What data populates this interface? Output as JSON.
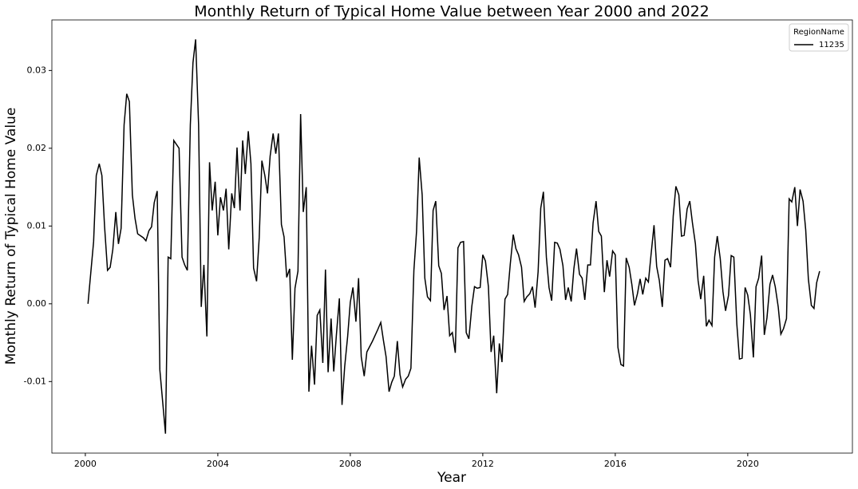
{
  "chart_data": {
    "type": "line",
    "title": "Monthly Return of Typical Home Value between Year 2000 and 2022",
    "x_label": "Year",
    "y_label": "Monthly Return of Typical Home Value",
    "legend_title": "RegionName",
    "legend_position": "upper right",
    "x": [
      2000.08,
      2000.25,
      2000.33,
      2000.42,
      2000.5,
      2000.58,
      2000.67,
      2000.75,
      2000.83,
      2000.92,
      2001.0,
      2001.08,
      2001.17,
      2001.25,
      2001.33,
      2001.42,
      2001.5,
      2001.58,
      2001.75,
      2001.83,
      2001.92,
      2002.0,
      2002.08,
      2002.17,
      2002.25,
      2002.42,
      2002.5,
      2002.58,
      2002.67,
      2002.83,
      2002.92,
      2003.0,
      2003.08,
      2003.17,
      2003.25,
      2003.33,
      2003.42,
      2003.5,
      2003.58,
      2003.67,
      2003.75,
      2003.83,
      2003.92,
      2004.0,
      2004.08,
      2004.17,
      2004.25,
      2004.33,
      2004.42,
      2004.5,
      2004.58,
      2004.67,
      2004.75,
      2004.83,
      2004.92,
      2005.0,
      2005.08,
      2005.17,
      2005.25,
      2005.33,
      2005.42,
      2005.5,
      2005.58,
      2005.67,
      2005.75,
      2005.83,
      2005.92,
      2006.0,
      2006.08,
      2006.17,
      2006.25,
      2006.33,
      2006.42,
      2006.5,
      2006.58,
      2006.67,
      2006.75,
      2006.83,
      2006.92,
      2007.0,
      2007.08,
      2007.17,
      2007.25,
      2007.33,
      2007.42,
      2007.5,
      2007.58,
      2007.67,
      2007.75,
      2007.83,
      2007.92,
      2008.0,
      2008.08,
      2008.17,
      2008.25,
      2008.33,
      2008.42,
      2008.5,
      2008.67,
      2008.83,
      2008.92,
      2009.0,
      2009.08,
      2009.17,
      2009.25,
      2009.33,
      2009.42,
      2009.5,
      2009.58,
      2009.67,
      2009.75,
      2009.83,
      2009.92,
      2010.0,
      2010.08,
      2010.17,
      2010.25,
      2010.33,
      2010.42,
      2010.5,
      2010.58,
      2010.67,
      2010.75,
      2010.83,
      2010.92,
      2011.0,
      2011.08,
      2011.17,
      2011.25,
      2011.33,
      2011.42,
      2011.5,
      2011.58,
      2011.67,
      2011.75,
      2011.83,
      2011.92,
      2012.0,
      2012.08,
      2012.17,
      2012.25,
      2012.33,
      2012.42,
      2012.5,
      2012.58,
      2012.67,
      2012.75,
      2012.83,
      2012.92,
      2013.0,
      2013.08,
      2013.17,
      2013.25,
      2013.33,
      2013.42,
      2013.5,
      2013.58,
      2013.67,
      2013.75,
      2013.83,
      2013.92,
      2014.0,
      2014.08,
      2014.17,
      2014.25,
      2014.33,
      2014.42,
      2014.5,
      2014.58,
      2014.67,
      2014.75,
      2014.83,
      2014.92,
      2015.0,
      2015.08,
      2015.17,
      2015.25,
      2015.33,
      2015.42,
      2015.5,
      2015.58,
      2015.67,
      2015.75,
      2015.83,
      2015.92,
      2016.0,
      2016.08,
      2016.17,
      2016.25,
      2016.33,
      2016.42,
      2016.5,
      2016.58,
      2016.67,
      2016.75,
      2016.83,
      2016.92,
      2017.0,
      2017.08,
      2017.17,
      2017.25,
      2017.33,
      2017.42,
      2017.5,
      2017.58,
      2017.67,
      2017.75,
      2017.83,
      2017.92,
      2018.0,
      2018.08,
      2018.17,
      2018.25,
      2018.33,
      2018.42,
      2018.5,
      2018.58,
      2018.67,
      2018.75,
      2018.83,
      2018.92,
      2019.0,
      2019.08,
      2019.17,
      2019.25,
      2019.33,
      2019.42,
      2019.5,
      2019.58,
      2019.67,
      2019.75,
      2019.83,
      2019.92,
      2020.0,
      2020.08,
      2020.17,
      2020.25,
      2020.33,
      2020.42,
      2020.5,
      2020.58,
      2020.67,
      2020.75,
      2020.83,
      2020.92,
      2021.0,
      2021.08,
      2021.17,
      2021.25,
      2021.33,
      2021.42,
      2021.5,
      2021.58,
      2021.67,
      2021.75,
      2021.83,
      2021.92,
      2022.0,
      2022.08,
      2022.17
    ],
    "series": [
      {
        "name": "11235",
        "color": "#000000",
        "values": [
          0.0,
          0.008,
          0.0165,
          0.018,
          0.0165,
          0.01,
          0.0043,
          0.0047,
          0.007,
          0.0118,
          0.0077,
          0.0097,
          0.023,
          0.027,
          0.026,
          0.014,
          0.011,
          0.009,
          0.0085,
          0.0081,
          0.0094,
          0.0099,
          0.013,
          0.0145,
          -0.0085,
          -0.0167,
          0.006,
          0.0058,
          0.021,
          0.02,
          0.006,
          0.005,
          0.0043,
          0.023,
          0.031,
          0.034,
          0.023,
          -0.0004,
          0.005,
          -0.0042,
          0.0182,
          0.012,
          0.0157,
          0.0088,
          0.0137,
          0.012,
          0.0148,
          0.007,
          0.0142,
          0.0123,
          0.0201,
          0.012,
          0.021,
          0.0167,
          0.0222,
          0.018,
          0.0046,
          0.0029,
          0.0085,
          0.0184,
          0.0165,
          0.0142,
          0.019,
          0.0219,
          0.0193,
          0.0219,
          0.0102,
          0.0086,
          0.0034,
          0.0045,
          -0.0072,
          0.002,
          0.0042,
          0.0244,
          0.0118,
          0.015,
          -0.0113,
          -0.0054,
          -0.0104,
          -0.0015,
          -0.0008,
          -0.0076,
          0.0044,
          -0.0088,
          -0.0019,
          -0.0087,
          -0.004,
          0.0007,
          -0.013,
          -0.0081,
          -0.0042,
          0.0002,
          0.0021,
          -0.0023,
          0.0033,
          -0.0068,
          -0.0093,
          -0.0062,
          -0.0048,
          -0.0033,
          -0.0024,
          -0.0047,
          -0.0068,
          -0.0113,
          -0.0101,
          -0.0093,
          -0.0048,
          -0.0091,
          -0.0107,
          -0.0097,
          -0.0093,
          -0.0083,
          0.0043,
          0.0093,
          0.0188,
          0.014,
          0.0033,
          0.0009,
          0.0004,
          0.012,
          0.0132,
          0.0049,
          0.0039,
          -0.0008,
          0.001,
          -0.0041,
          -0.0037,
          -0.0063,
          0.0072,
          0.0079,
          0.008,
          -0.0037,
          -0.0045,
          -0.0003,
          0.0022,
          0.002,
          0.0021,
          0.0063,
          0.0055,
          0.0022,
          -0.0062,
          -0.0041,
          -0.0115,
          -0.0051,
          -0.0075,
          0.0006,
          0.0012,
          0.0051,
          0.0089,
          0.0071,
          0.0063,
          0.0047,
          0.0003,
          0.0009,
          0.0013,
          0.0022,
          -0.0005,
          0.0041,
          0.0123,
          0.0144,
          0.006,
          0.0021,
          0.0004,
          0.0079,
          0.0078,
          0.007,
          0.0049,
          0.0005,
          0.0021,
          0.0003,
          0.0045,
          0.0071,
          0.0038,
          0.0033,
          0.0005,
          0.005,
          0.005,
          0.0104,
          0.0132,
          0.0093,
          0.0087,
          0.0015,
          0.0056,
          0.0035,
          0.0068,
          0.0063,
          -0.0056,
          -0.0078,
          -0.008,
          0.0059,
          0.0047,
          0.0025,
          -0.0002,
          0.0013,
          0.0032,
          0.0012,
          0.0033,
          0.0028,
          0.0063,
          0.0101,
          0.0048,
          0.003,
          -0.0004,
          0.0056,
          0.0058,
          0.0047,
          0.0113,
          0.0151,
          0.014,
          0.0087,
          0.0088,
          0.0122,
          0.0132,
          0.0104,
          0.0077,
          0.003,
          0.0006,
          0.0036,
          -0.0029,
          -0.0021,
          -0.0028,
          0.006,
          0.0087,
          0.0058,
          0.0016,
          -0.0009,
          0.0011,
          0.0062,
          0.006,
          -0.0026,
          -0.0071,
          -0.007,
          0.0021,
          0.0011,
          -0.0014,
          -0.0069,
          0.0022,
          0.0033,
          0.0062,
          -0.004,
          -0.0018,
          0.0025,
          0.0037,
          0.0022,
          -0.0004,
          -0.0039,
          -0.0032,
          -0.0019,
          0.0135,
          0.0131,
          0.015,
          0.01,
          0.0147,
          0.0132,
          0.0095,
          0.0032,
          -0.0002,
          -0.0006,
          0.0027,
          0.0042
        ]
      }
    ],
    "xlim": [
      1998.99,
      2023.16
    ],
    "xticks": [
      2000,
      2004,
      2008,
      2012,
      2016,
      2020
    ],
    "ylim": [
      -0.0192,
      0.0365
    ],
    "yticks": [
      -0.01,
      {
        "value": 0,
        "label": "0.00"
      },
      0.01,
      0.02,
      0.03
    ],
    "grid": false
  }
}
